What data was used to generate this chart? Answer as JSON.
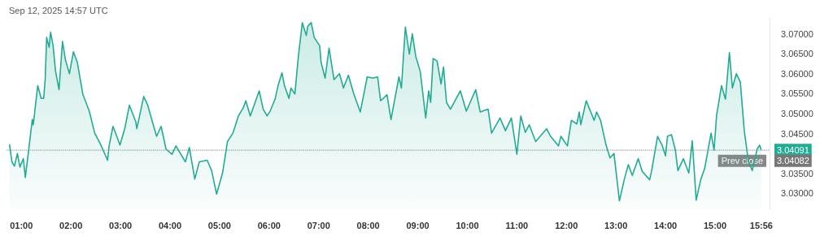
{
  "chart_data": {
    "type": "area",
    "annotations": [
      "Sep 12, 2025 14:57 UTC",
      "3.04091",
      "3.04082"
    ],
    "x": [
      0.76,
      0.81,
      0.86,
      0.92,
      0.97,
      1.04,
      1.08,
      1.17,
      1.22,
      1.24,
      1.33,
      1.4,
      1.45,
      1.48,
      1.51,
      1.56,
      1.59,
      1.64,
      1.69,
      1.76,
      1.83,
      1.89,
      1.97,
      2.05,
      2.13,
      2.24,
      2.37,
      2.48,
      2.59,
      2.74,
      2.77,
      2.85,
      2.99,
      3.09,
      3.18,
      3.31,
      3.33,
      3.47,
      3.55,
      3.68,
      3.73,
      3.82,
      3.92,
      4.04,
      4.12,
      4.31,
      4.39,
      4.5,
      4.59,
      4.75,
      4.84,
      4.94,
      5.06,
      5.16,
      5.27,
      5.38,
      5.48,
      5.53,
      5.62,
      5.8,
      5.88,
      5.96,
      6.02,
      6.12,
      6.18,
      6.26,
      6.31,
      6.4,
      6.44,
      6.52,
      6.59,
      6.67,
      6.75,
      6.78,
      6.85,
      6.91,
      7.02,
      7.05,
      7.13,
      7.21,
      7.31,
      7.42,
      7.5,
      7.6,
      7.71,
      7.84,
      7.98,
      8.09,
      8.19,
      8.25,
      8.38,
      8.46,
      8.62,
      8.67,
      8.75,
      8.83,
      8.89,
      8.96,
      9.05,
      9.16,
      9.22,
      9.26,
      9.31,
      9.39,
      9.47,
      9.52,
      9.58,
      9.66,
      9.86,
      9.98,
      10.17,
      10.26,
      10.42,
      10.49,
      10.66,
      10.77,
      10.89,
      11.0,
      11.08,
      11.17,
      11.25,
      11.38,
      11.6,
      11.68,
      11.84,
      11.89,
      12.02,
      12.1,
      12.21,
      12.26,
      12.29,
      12.4,
      12.56,
      12.61,
      12.69,
      12.8,
      12.88,
      12.96,
      13.07,
      13.17,
      13.25,
      13.33,
      13.45,
      13.53,
      13.68,
      13.72,
      13.84,
      13.93,
      14.0,
      14.04,
      14.12,
      14.2,
      14.25,
      14.36,
      14.47,
      14.54,
      14.62,
      14.71,
      14.79,
      14.92,
      14.98,
      15.03,
      15.13,
      15.21,
      15.29,
      15.35,
      15.43,
      15.51,
      15.59,
      15.67,
      15.75,
      15.85,
      15.9,
      15.93
    ],
    "series": [
      {
        "color": "#22ab94",
        "values": [
          3.0423,
          3.0379,
          3.0368,
          3.04,
          3.0366,
          3.0387,
          3.034,
          3.0432,
          3.0485,
          3.0472,
          3.057,
          3.0538,
          3.0538,
          3.0585,
          3.0691,
          3.0666,
          3.0704,
          3.067,
          3.0606,
          3.056,
          3.0681,
          3.0634,
          3.06,
          3.0655,
          3.0628,
          3.0549,
          3.0506,
          3.0451,
          3.0425,
          3.0383,
          3.0419,
          3.0468,
          3.0421,
          3.0464,
          3.0521,
          3.0479,
          3.0462,
          3.0543,
          3.0521,
          3.0464,
          3.0443,
          3.0468,
          3.0411,
          3.0398,
          3.0419,
          3.0379,
          3.0415,
          3.0336,
          3.0379,
          3.0383,
          3.0357,
          3.0298,
          3.0351,
          3.043,
          3.0451,
          3.0494,
          3.0515,
          3.0532,
          3.0494,
          3.0557,
          3.0511,
          3.0494,
          3.0506,
          3.0536,
          3.057,
          3.0602,
          3.057,
          3.0538,
          3.0564,
          3.0549,
          3.0643,
          3.0728,
          3.0696,
          3.0719,
          3.0728,
          3.0691,
          3.067,
          3.0628,
          3.0589,
          3.0664,
          3.0585,
          3.06,
          3.0564,
          3.0596,
          3.0549,
          3.0504,
          3.0592,
          3.0589,
          3.0592,
          3.0532,
          3.0547,
          3.0485,
          3.0592,
          3.0564,
          3.0717,
          3.0649,
          3.07,
          3.0643,
          3.0606,
          3.0489,
          3.0557,
          3.0528,
          3.0638,
          3.0632,
          3.0574,
          3.0617,
          3.0528,
          3.0511,
          3.0557,
          3.0506,
          3.056,
          3.0504,
          3.0511,
          3.0451,
          3.0489,
          3.0457,
          3.0489,
          3.0398,
          3.0494,
          3.0453,
          3.0472,
          3.043,
          3.0462,
          3.0443,
          3.0419,
          3.0443,
          3.0419,
          3.0483,
          3.0474,
          3.0504,
          3.0472,
          3.0532,
          3.0483,
          3.0504,
          3.0483,
          3.0421,
          3.0389,
          3.04,
          3.0281,
          3.0336,
          3.0372,
          3.0345,
          3.0387,
          3.0355,
          3.0334,
          3.0357,
          3.0443,
          3.0421,
          3.0394,
          3.0443,
          3.0447,
          3.0408,
          3.0357,
          3.0387,
          3.0351,
          3.0432,
          3.0283,
          3.0334,
          3.0362,
          3.0451,
          3.0408,
          3.0494,
          3.057,
          3.0536,
          3.0653,
          3.0564,
          3.06,
          3.0579,
          3.0457,
          3.0383,
          3.0357,
          3.0411,
          3.0421,
          3.04091
        ]
      }
    ],
    "xlim": [
      0.7,
      16.1
    ],
    "xticks": [
      {
        "value": 1,
        "label": "01:00"
      },
      {
        "value": 2,
        "label": "02:00"
      },
      {
        "value": 3,
        "label": "03:00"
      },
      {
        "value": 4,
        "label": "04:00"
      },
      {
        "value": 5,
        "label": "05:00"
      },
      {
        "value": 6,
        "label": "06:00"
      },
      {
        "value": 7,
        "label": "07:00"
      },
      {
        "value": 8,
        "label": "08:00"
      },
      {
        "value": 9,
        "label": "09:00"
      },
      {
        "value": 10,
        "label": "10:00"
      },
      {
        "value": 11,
        "label": "11:00"
      },
      {
        "value": 12,
        "label": "12:00"
      },
      {
        "value": 13,
        "label": "13:00"
      },
      {
        "value": 14,
        "label": "14:00"
      },
      {
        "value": 15,
        "label": "15:00"
      },
      {
        "value": 15.933,
        "label": "15:56"
      }
    ],
    "ylim": [
      3.026,
      3.074
    ],
    "yticks": [
      {
        "value": 3.03,
        "label": "3.03000"
      },
      {
        "value": 3.035,
        "label": "3.03500"
      },
      {
        "value": 3.045,
        "label": "3.04500"
      },
      {
        "value": 3.05,
        "label": "3.05000"
      },
      {
        "value": 3.055,
        "label": "3.05500"
      },
      {
        "value": 3.06,
        "label": "3.06000"
      },
      {
        "value": 3.065,
        "label": "3.06500"
      },
      {
        "value": 3.07,
        "label": "3.07000"
      }
    ],
    "ref_lines": [
      {
        "axis": "y",
        "value": 3.04082,
        "label": "Prev close",
        "color": "#9598a1",
        "line_style": "dotted"
      }
    ],
    "grid": false,
    "marker": "none",
    "line_style": "solid"
  }
}
